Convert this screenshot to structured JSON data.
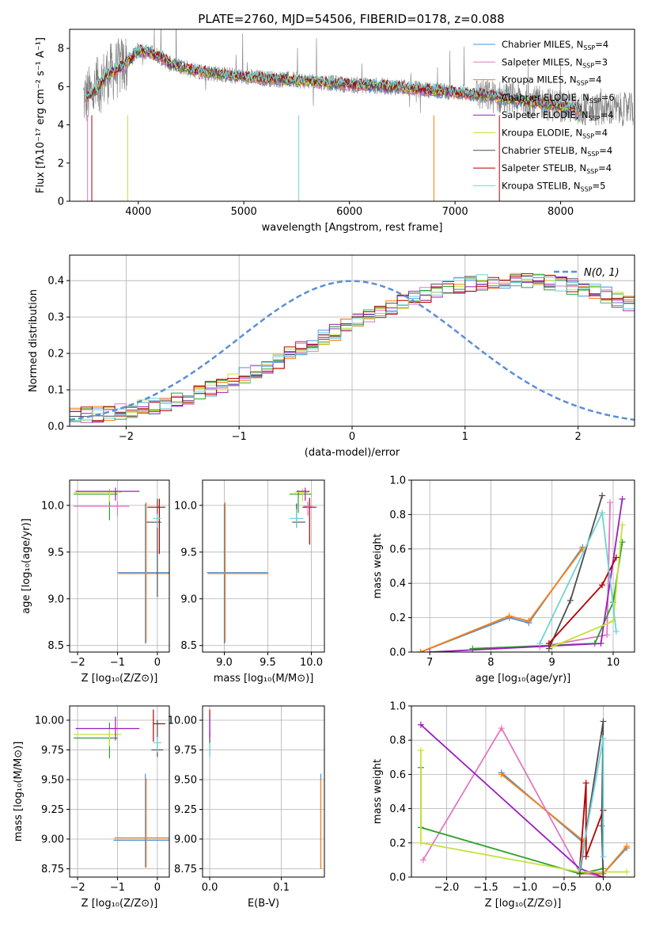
{
  "figure": {
    "title": "PLATE=2760, MJD=54506, FIBERID=0178, z=0.088"
  },
  "colors": {
    "chabrier_miles": "#4a90d9",
    "salpeter_miles": "#e377c2",
    "kroupa_miles": "#ff7f0e",
    "chabrier_elodie": "#2ca02c",
    "salpeter_elodie": "#9b1fbf",
    "kroupa_elodie": "#c8e03c",
    "chabrier_stelib": "#4d4d4d",
    "salpeter_stelib": "#b30000",
    "kroupa_stelib": "#6fd3d8",
    "data": "#808080",
    "normal_curve": "#5b8fd6",
    "grid": "#b0b0b0"
  },
  "chart_data": [
    {
      "id": "spectrum",
      "type": "line",
      "title": "PLATE=2760, MJD=54506, FIBERID=0178, z=0.088",
      "xlabel": "wavelength [Angstrom, rest frame]",
      "ylabel": "Flux [fλ10⁻¹⁷ erg cm⁻² s⁻¹ A⁻¹]",
      "xlim": [
        3350,
        8700
      ],
      "ylim": [
        0,
        9
      ],
      "xticks": [
        4000,
        5000,
        6000,
        7000,
        8000
      ],
      "yticks": [
        0,
        2,
        4,
        6,
        8
      ],
      "grid": false,
      "legend_position": "top-right",
      "continuum": {
        "x": [
          3500,
          3600,
          3700,
          3800,
          3900,
          4000,
          4100,
          4200,
          4300,
          4500,
          4700,
          5000,
          5300,
          5600,
          6000,
          6400,
          6800,
          7200,
          7600,
          8000,
          8200
        ],
        "y": [
          5.4,
          5.8,
          6.6,
          6.9,
          7.3,
          7.9,
          7.8,
          7.6,
          7.2,
          6.9,
          6.7,
          6.5,
          6.4,
          6.3,
          6.1,
          6.0,
          5.8,
          5.6,
          5.3,
          5.0,
          4.8
        ]
      },
      "series": [
        {
          "name": "Chabrier MILES, N",
          "sub": "SSP",
          "suffix": "=4",
          "color_key": "chabrier_miles"
        },
        {
          "name": "Salpeter MILES, N",
          "sub": "SSP",
          "suffix": "=3",
          "color_key": "salpeter_miles"
        },
        {
          "name": "Kroupa MILES, N",
          "sub": "SSP",
          "suffix": "=4",
          "color_key": "kroupa_miles"
        },
        {
          "name": "Chabrier ELODIE, N",
          "sub": "SSP",
          "suffix": "=6",
          "color_key": "chabrier_elodie"
        },
        {
          "name": "Salpeter ELODIE, N",
          "sub": "SSP",
          "suffix": "=4",
          "color_key": "salpeter_elodie"
        },
        {
          "name": "Kroupa ELODIE, N",
          "sub": "SSP",
          "suffix": "=4",
          "color_key": "kroupa_elodie"
        },
        {
          "name": "Chabrier STELIB, N",
          "sub": "SSP",
          "suffix": "=4",
          "color_key": "chabrier_stelib"
        },
        {
          "name": "Salpeter STELIB, N",
          "sub": "SSP",
          "suffix": "=4",
          "color_key": "salpeter_stelib"
        },
        {
          "name": "Kroupa STELIB, N",
          "sub": "SSP",
          "suffix": "=5",
          "color_key": "kroupa_stelib"
        }
      ]
    },
    {
      "id": "residuals",
      "type": "line",
      "xlabel": "(data-model)/error",
      "ylabel": "Normed distribution",
      "xlim": [
        -2.5,
        2.5
      ],
      "ylim": [
        0,
        0.47
      ],
      "xticks": [
        -2,
        -1,
        0,
        1,
        2
      ],
      "yticks": [
        0.0,
        0.1,
        0.2,
        0.3,
        0.4
      ],
      "grid": true,
      "legend": "N(0, 1)",
      "legend_position": "top-right",
      "bin_width": 0.1,
      "histogram_base": [
        0.03,
        0.031,
        0.033,
        0.036,
        0.04,
        0.045,
        0.05,
        0.056,
        0.063,
        0.072,
        0.081,
        0.091,
        0.102,
        0.113,
        0.126,
        0.139,
        0.152,
        0.167,
        0.181,
        0.196,
        0.212,
        0.227,
        0.243,
        0.258,
        0.273,
        0.288,
        0.302,
        0.316,
        0.329,
        0.341,
        0.352,
        0.362,
        0.371,
        0.379,
        0.386,
        0.392,
        0.396,
        0.399,
        0.401,
        0.402,
        0.401,
        0.399,
        0.395,
        0.39,
        0.384,
        0.377,
        0.369,
        0.36,
        0.349,
        0.338,
        0.327,
        0.314,
        0.301,
        0.288,
        0.274,
        0.259,
        0.245,
        0.23,
        0.215,
        0.2,
        0.185,
        0.171,
        0.157,
        0.143,
        0.131,
        0.118,
        0.107,
        0.096,
        0.086,
        0.077,
        0.069,
        0.061,
        0.055,
        0.049,
        0.044,
        0.04,
        0.036,
        0.033,
        0.031,
        0.03
      ],
      "histogram_start": -2.5
    },
    {
      "id": "age_vs_z",
      "type": "scatter",
      "xlabel": "Z [log₁₀(Z/Z⊙)]",
      "ylabel": "age  [log₁₀(age/yr)]",
      "xlim": [
        -2.2,
        0.3
      ],
      "ylim": [
        8.43,
        10.27
      ],
      "xticks": [
        -2,
        -1,
        0
      ],
      "yticks": [
        8.5,
        9.0,
        9.5,
        10.0
      ],
      "grid": true,
      "points": [
        {
          "color_key": "chabrier_elodie",
          "x": -1.2,
          "y": 10.12,
          "xerr": [
            0.9,
            0.2
          ],
          "yerr": [
            0.28,
            0.04
          ]
        },
        {
          "color_key": "kroupa_elodie",
          "x": -1.2,
          "y": 10.14,
          "xerr": [
            0.9,
            0.3
          ],
          "yerr": [
            0.1,
            0.04
          ]
        },
        {
          "color_key": "salpeter_elodie",
          "x": -1.05,
          "y": 10.15,
          "xerr": [
            1.0,
            0.6
          ],
          "yerr": [
            0.1,
            0.04
          ]
        },
        {
          "color_key": "salpeter_miles",
          "x": -1.0,
          "y": 9.99,
          "xerr": [
            1.1,
            0.3
          ],
          "yerr": [
            0.1,
            0.05
          ]
        },
        {
          "color_key": "chabrier_miles",
          "x": -0.3,
          "y": 9.28,
          "xerr": [
            0.7,
            0.6
          ],
          "yerr": [
            0.76,
            0.74
          ]
        },
        {
          "color_key": "kroupa_miles",
          "x": -0.28,
          "y": 9.27,
          "xerr": [
            0.7,
            0.6
          ],
          "yerr": [
            0.74,
            0.76
          ]
        },
        {
          "color_key": "chabrier_stelib",
          "x": 0.0,
          "y": 9.82,
          "xerr": [
            0.27,
            0.1
          ],
          "yerr": [
            0.8,
            0.25
          ]
        },
        {
          "color_key": "salpeter_stelib",
          "x": 0.05,
          "y": 9.98,
          "xerr": [
            0.3,
            0.15
          ],
          "yerr": [
            0.5,
            0.09
          ]
        },
        {
          "color_key": "kroupa_stelib",
          "x": 0.0,
          "y": 9.86,
          "xerr": [
            0.1,
            0.1
          ],
          "yerr": [
            0.1,
            0.05
          ]
        }
      ]
    },
    {
      "id": "age_vs_mass",
      "type": "scatter",
      "xlabel": "mass [log₁₀(M/M⊙)]",
      "ylabel": "",
      "xlim": [
        8.75,
        10.15
      ],
      "ylim": [
        8.43,
        10.27
      ],
      "xticks": [
        9.0,
        9.5,
        10.0
      ],
      "yticks": [
        8.5,
        9.0,
        9.5,
        10.0
      ],
      "grid": true,
      "points": [
        {
          "color_key": "chabrier_miles",
          "x": 9.0,
          "y": 9.28,
          "xerr": [
            0.2,
            0.5
          ],
          "yerr": [
            0.76,
            0.74
          ]
        },
        {
          "color_key": "kroupa_miles",
          "x": 9.01,
          "y": 9.27,
          "xerr": [
            0.2,
            0.5
          ],
          "yerr": [
            0.74,
            0.76
          ]
        },
        {
          "color_key": "chabrier_elodie",
          "x": 9.85,
          "y": 10.12,
          "xerr": [
            0.1,
            0.15
          ],
          "yerr": [
            0.2,
            0.04
          ]
        },
        {
          "color_key": "kroupa_elodie",
          "x": 9.9,
          "y": 10.14,
          "xerr": [
            0.1,
            0.08
          ],
          "yerr": [
            0.1,
            0.04
          ]
        },
        {
          "color_key": "salpeter_elodie",
          "x": 9.93,
          "y": 10.15,
          "xerr": [
            0.1,
            0.05
          ],
          "yerr": [
            0.1,
            0.04
          ]
        },
        {
          "color_key": "chabrier_stelib",
          "x": 9.83,
          "y": 9.82,
          "xerr": [
            0.05,
            0.1
          ],
          "yerr": [
            0.06,
            0.2
          ]
        },
        {
          "color_key": "salpeter_stelib",
          "x": 9.98,
          "y": 9.98,
          "xerr": [
            0.08,
            0.08
          ],
          "yerr": [
            0.4,
            0.1
          ]
        },
        {
          "color_key": "kroupa_stelib",
          "x": 9.83,
          "y": 9.86,
          "xerr": [
            0.08,
            0.08
          ],
          "yerr": [
            0.1,
            0.1
          ]
        },
        {
          "color_key": "salpeter_miles",
          "x": 9.96,
          "y": 9.99,
          "xerr": [
            0.05,
            0.05
          ],
          "yerr": [
            0.1,
            0.05
          ]
        }
      ]
    },
    {
      "id": "weight_vs_age",
      "type": "line",
      "xlabel": "age  [log₁₀(age/yr)]",
      "ylabel": "mass weight",
      "xlim": [
        6.7,
        10.35
      ],
      "ylim": [
        0,
        1
      ],
      "xticks": [
        7,
        8,
        9,
        10
      ],
      "yticks": [
        0.0,
        0.2,
        0.4,
        0.6,
        0.8,
        1.0
      ],
      "grid": true,
      "series": [
        {
          "color_key": "chabrier_miles",
          "x": [
            6.85,
            8.3,
            8.62,
            9.5
          ],
          "y": [
            0.0,
            0.2,
            0.17,
            0.61
          ]
        },
        {
          "color_key": "kroupa_miles",
          "x": [
            6.85,
            8.3,
            8.62,
            9.5
          ],
          "y": [
            0.0,
            0.21,
            0.18,
            0.6
          ]
        },
        {
          "color_key": "salpeter_miles",
          "x": [
            8.8,
            9.9,
            9.95
          ],
          "y": [
            0.03,
            0.1,
            0.87
          ]
        },
        {
          "color_key": "chabrier_elodie",
          "x": [
            7.7,
            9.7,
            10.0,
            10.15
          ],
          "y": [
            0.02,
            0.05,
            0.29,
            0.64
          ]
        },
        {
          "color_key": "salpeter_elodie",
          "x": [
            7.0,
            9.8,
            10.15
          ],
          "y": [
            0.0,
            0.05,
            0.89
          ]
        },
        {
          "color_key": "kroupa_elodie",
          "x": [
            9.0,
            10.0,
            10.15
          ],
          "y": [
            0.03,
            0.18,
            0.74
          ]
        },
        {
          "color_key": "chabrier_stelib",
          "x": [
            8.95,
            9.3,
            9.82
          ],
          "y": [
            0.02,
            0.3,
            0.91
          ]
        },
        {
          "color_key": "salpeter_stelib",
          "x": [
            8.95,
            9.82,
            10.05
          ],
          "y": [
            0.05,
            0.39,
            0.55
          ]
        },
        {
          "color_key": "kroupa_stelib",
          "x": [
            8.8,
            9.82,
            10.05
          ],
          "y": [
            0.05,
            0.81,
            0.12
          ]
        }
      ]
    },
    {
      "id": "mass_vs_z",
      "type": "scatter",
      "xlabel": "Z [log₁₀(Z/Z⊙)]",
      "ylabel": "mass [log₁₀(M/M⊙)]",
      "xlim": [
        -2.2,
        0.3
      ],
      "ylim": [
        8.68,
        10.12
      ],
      "xticks": [
        -2,
        -1,
        0
      ],
      "yticks": [
        8.75,
        9.0,
        9.25,
        9.5,
        9.75,
        10.0
      ],
      "grid": true,
      "points": [
        {
          "color_key": "chabrier_elodie",
          "x": -1.2,
          "y": 9.85,
          "xerr": [
            0.9,
            0.2
          ],
          "yerr": [
            0.17,
            0.13
          ]
        },
        {
          "color_key": "kroupa_elodie",
          "x": -1.2,
          "y": 9.88,
          "xerr": [
            0.9,
            0.3
          ],
          "yerr": [
            0.1,
            0.05
          ]
        },
        {
          "color_key": "salpeter_elodie",
          "x": -1.05,
          "y": 9.93,
          "xerr": [
            1.0,
            0.6
          ],
          "yerr": [
            0.1,
            0.1
          ]
        },
        {
          "color_key": "chabrier_miles",
          "x": -0.3,
          "y": 8.99,
          "xerr": [
            0.8,
            0.6
          ],
          "yerr": [
            0.23,
            0.56
          ]
        },
        {
          "color_key": "kroupa_miles",
          "x": -0.28,
          "y": 9.01,
          "xerr": [
            0.8,
            0.6
          ],
          "yerr": [
            0.25,
            0.5
          ]
        },
        {
          "color_key": "salpeter_stelib",
          "x": -0.1,
          "y": 9.97,
          "xerr": [
            0.0,
            0.3
          ],
          "yerr": [
            0.15,
            0.12
          ]
        },
        {
          "color_key": "chabrier_stelib",
          "x": 0.0,
          "y": 9.75,
          "xerr": [
            0.15,
            0.15
          ],
          "yerr": [
            0.06,
            0.25
          ]
        },
        {
          "color_key": "kroupa_stelib",
          "x": 0.0,
          "y": 9.81,
          "xerr": [
            0.1,
            0.1
          ],
          "yerr": [
            0.08,
            0.05
          ]
        }
      ]
    },
    {
      "id": "mass_vs_ebv",
      "type": "scatter",
      "xlabel": "E(B-V)",
      "ylabel": "",
      "xlim": [
        -0.01,
        0.16
      ],
      "ylim": [
        8.68,
        10.12
      ],
      "xticks": [
        0.0,
        0.1
      ],
      "yticks": [
        8.75,
        9.0,
        9.25,
        9.5,
        9.75,
        10.0
      ],
      "grid": true,
      "points": [
        {
          "color_key": "salpeter_stelib",
          "x": 0.0,
          "y": 9.97,
          "xerr": [
            0,
            0
          ],
          "yerr": [
            0.1,
            0.12
          ]
        },
        {
          "color_key": "kroupa_elodie",
          "x": 0.0,
          "y": 9.88,
          "xerr": [
            0,
            0
          ],
          "yerr": [
            0.08,
            0.08
          ]
        },
        {
          "color_key": "chabrier_stelib",
          "x": 0.0,
          "y": 9.8,
          "xerr": [
            0,
            0
          ],
          "yerr": [
            0.1,
            0.1
          ]
        },
        {
          "color_key": "kroupa_stelib",
          "x": 0.0,
          "y": 9.75,
          "xerr": [
            0,
            0
          ],
          "yerr": [
            0.06,
            0.06
          ]
        },
        {
          "color_key": "salpeter_elodie",
          "x": 0.0,
          "y": 9.93,
          "xerr": [
            0,
            0
          ],
          "yerr": [
            0.08,
            0.1
          ]
        },
        {
          "color_key": "chabrier_miles",
          "x": 0.155,
          "y": 9.0,
          "xerr": [
            0,
            0
          ],
          "yerr": [
            0.25,
            0.55
          ]
        },
        {
          "color_key": "kroupa_miles",
          "x": 0.155,
          "y": 9.0,
          "xerr": [
            0,
            0
          ],
          "yerr": [
            0.25,
            0.5
          ]
        }
      ]
    },
    {
      "id": "weight_vs_z",
      "type": "line",
      "xlabel": "Z [log₁₀(Z/Z⊙)]",
      "ylabel": "mass weight",
      "xlim": [
        -2.45,
        0.4
      ],
      "ylim": [
        0,
        1
      ],
      "xticks": [
        -2.0,
        -1.5,
        -1.0,
        -0.5,
        0.0
      ],
      "yticks": [
        0.0,
        0.2,
        0.4,
        0.6,
        0.8,
        1.0
      ],
      "grid": true,
      "series": [
        {
          "color_key": "chabrier_miles",
          "x": [
            -1.3,
            -0.25,
            -0.3,
            0.0,
            0.3
          ],
          "y": [
            0.61,
            0.2,
            0.02,
            0.02,
            0.17
          ]
        },
        {
          "color_key": "kroupa_miles",
          "x": [
            -1.3,
            -0.25,
            -0.3,
            0.0,
            0.3
          ],
          "y": [
            0.6,
            0.21,
            0.02,
            0.02,
            0.18
          ]
        },
        {
          "color_key": "salpeter_miles",
          "x": [
            -2.3,
            -1.3,
            -0.3,
            0.0
          ],
          "y": [
            0.1,
            0.87,
            0.03,
            0.0
          ]
        },
        {
          "color_key": "chabrier_elodie",
          "x": [
            -2.33,
            -2.33,
            -0.3,
            0.0
          ],
          "y": [
            0.64,
            0.29,
            0.02,
            0.05
          ]
        },
        {
          "color_key": "salpeter_elodie",
          "x": [
            -2.33,
            -0.3,
            0.0
          ],
          "y": [
            0.89,
            0.05,
            0.0
          ]
        },
        {
          "color_key": "kroupa_elodie",
          "x": [
            -2.33,
            -2.33,
            -0.3,
            0.0,
            0.3
          ],
          "y": [
            0.74,
            0.2,
            0.03,
            0.03,
            0.03
          ]
        },
        {
          "color_key": "chabrier_stelib",
          "x": [
            -0.3,
            0.0,
            -0.02,
            0.0
          ],
          "y": [
            0.02,
            0.91,
            0.3,
            0.0
          ]
        },
        {
          "color_key": "salpeter_stelib",
          "x": [
            -0.3,
            -0.22,
            -0.22,
            0.0
          ],
          "y": [
            0.05,
            0.55,
            0.12,
            0.39
          ]
        },
        {
          "color_key": "kroupa_stelib",
          "x": [
            -0.3,
            0.0,
            0.0
          ],
          "y": [
            0.05,
            0.81,
            0.12
          ]
        }
      ]
    }
  ]
}
